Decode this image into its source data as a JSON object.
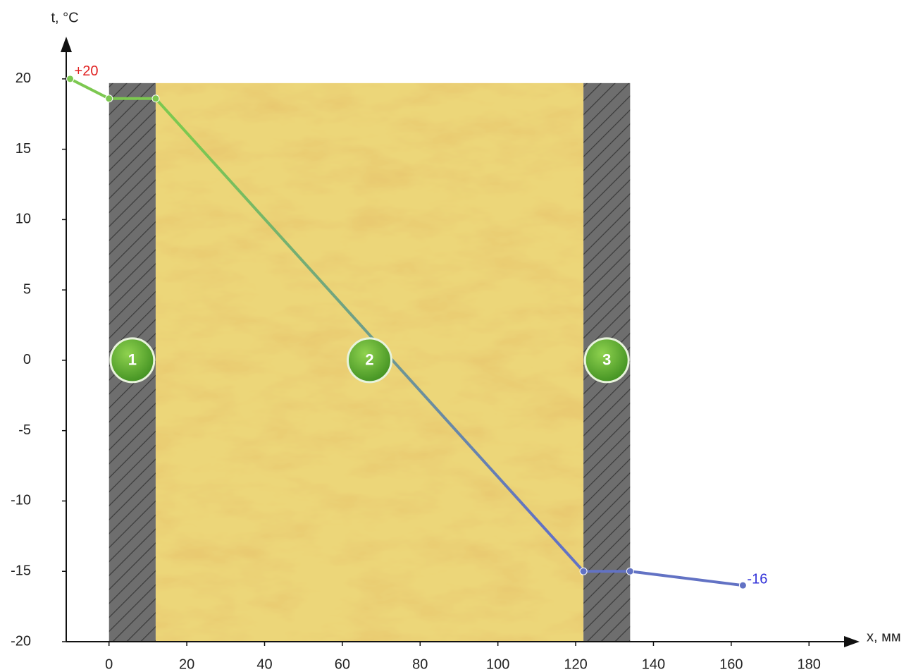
{
  "chart_data": {
    "type": "line",
    "y_label": "t, °C",
    "x_label": "x, мм",
    "xlim": [
      -11,
      193
    ],
    "ylim": [
      -20,
      23
    ],
    "xticks": [
      0,
      20,
      40,
      60,
      80,
      100,
      120,
      140,
      160,
      180
    ],
    "yticks": [
      20,
      15,
      10,
      5,
      0,
      -5,
      -10,
      -15,
      -20
    ],
    "layer_top": 19.7,
    "label_y": 0,
    "layers": [
      {
        "label": "1",
        "from": 0,
        "to": 12,
        "material": "hatch"
      },
      {
        "label": "2",
        "from": 12,
        "to": 122,
        "material": "wool"
      },
      {
        "label": "3",
        "from": 122,
        "to": 134,
        "material": "hatch"
      }
    ],
    "series": [
      {
        "colors": [
          "#7cc850",
          "#6272c4"
        ],
        "x": [
          -10,
          0,
          12,
          122,
          134,
          163
        ],
        "values": [
          20,
          18.6,
          18.6,
          -15,
          -15,
          -16
        ]
      }
    ],
    "annotations": [
      {
        "text": "+20",
        "color": "#e02020"
      },
      {
        "text": "-16",
        "color": "#3030d8"
      }
    ]
  }
}
